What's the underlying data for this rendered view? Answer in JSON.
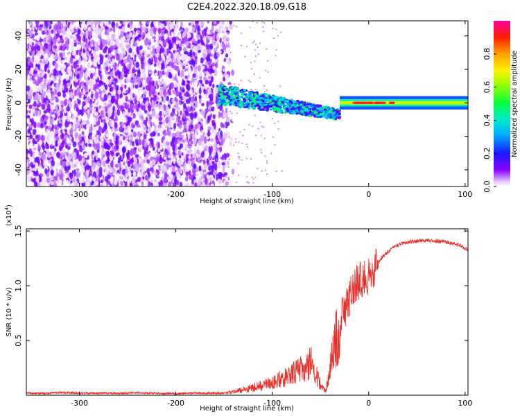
{
  "figure": {
    "title": "C2E4.2022.320.18.09.G18"
  },
  "chart_data": [
    {
      "type": "heatmap",
      "title": "C2E4.2022.320.18.09.G18",
      "xlabel": "Height of straight line (km)",
      "ylabel": "Frequency (Hz)",
      "xlim": [
        -355,
        103
      ],
      "ylim": [
        -50,
        49
      ],
      "x_ticks": [
        -300,
        -200,
        -100,
        0,
        100
      ],
      "x_tick_labels": [
        "-300",
        "-200",
        "-100",
        "0",
        "100"
      ],
      "y_ticks": [
        -40,
        -20,
        0,
        20,
        40
      ],
      "y_tick_labels": [
        "-40",
        "-20",
        "0",
        "20",
        "40"
      ],
      "grid": false,
      "colorbar": {
        "label": "Normalized spectral amplitude",
        "range": [
          0,
          1
        ],
        "ticks": [
          0.0,
          0.2,
          0.4,
          0.6,
          0.8
        ],
        "tick_labels": [
          "0.0",
          "0.2",
          "0.4",
          "0.6",
          "0.8"
        ],
        "colormap": "rainbow (white → purple → blue → cyan → green → yellow → orange → red → magenta)"
      },
      "features": [
        {
          "region": "broadband noise",
          "x_range": [
            -355,
            -145
          ],
          "y_range": [
            -50,
            49
          ],
          "amplitude": [
            0.0,
            0.15
          ]
        },
        {
          "region": "signal onset",
          "x_range": [
            -155,
            -30
          ],
          "freq_start": 5,
          "freq_end": -7,
          "amplitude": [
            0.1,
            0.5
          ]
        },
        {
          "region": "steady carrier",
          "x_range": [
            -30,
            103
          ],
          "freq": 0,
          "amplitude": [
            0.4,
            1.0
          ]
        }
      ]
    },
    {
      "type": "line",
      "xlabel": "Height of straight line (km)",
      "ylabel": "SNR (10 * v/v)",
      "y_multiplier_label": "(x10",
      "y_multiplier_exp": "4",
      "xlim": [
        -355,
        103
      ],
      "ylim": [
        0,
        15200
      ],
      "x_ticks": [
        -300,
        -200,
        -100,
        0,
        100
      ],
      "x_tick_labels": [
        "-300",
        "-200",
        "-100",
        "0",
        "100"
      ],
      "y_ticks": [
        5000,
        10000,
        15000
      ],
      "y_tick_labels": [
        "0.5",
        "1.0",
        "1.5"
      ],
      "grid": false,
      "series": [
        {
          "color": "#e8302a",
          "x": [
            -355,
            -340,
            -320,
            -300,
            -280,
            -260,
            -240,
            -220,
            -200,
            -180,
            -160,
            -150,
            -140,
            -130,
            -120,
            -110,
            -100,
            -95,
            -90,
            -85,
            -80,
            -75,
            -70,
            -65,
            -62,
            -60,
            -58,
            -55,
            -52,
            -50,
            -48,
            -45,
            -42,
            -40,
            -38,
            -35,
            -32,
            -30,
            -28,
            -25,
            -22,
            -20,
            -18,
            -15,
            -12,
            -10,
            -8,
            -5,
            -2,
            0,
            5,
            10,
            15,
            20,
            25,
            30,
            40,
            50,
            60,
            70,
            80,
            90,
            95,
            100,
            103
          ],
          "y": [
            200,
            150,
            250,
            180,
            200,
            170,
            220,
            180,
            160,
            200,
            180,
            200,
            300,
            500,
            700,
            900,
            1100,
            1400,
            1500,
            1700,
            1900,
            2100,
            2300,
            2500,
            2700,
            3000,
            2600,
            2100,
            1400,
            900,
            700,
            400,
            1200,
            2300,
            3500,
            4700,
            5700,
            6600,
            7200,
            7700,
            8400,
            9000,
            9500,
            10000,
            10300,
            10500,
            10700,
            10600,
            10900,
            11000,
            11600,
            12200,
            12700,
            13100,
            13400,
            13700,
            14000,
            14100,
            14150,
            14100,
            14000,
            13800,
            13700,
            13400,
            13300
          ]
        }
      ]
    }
  ]
}
